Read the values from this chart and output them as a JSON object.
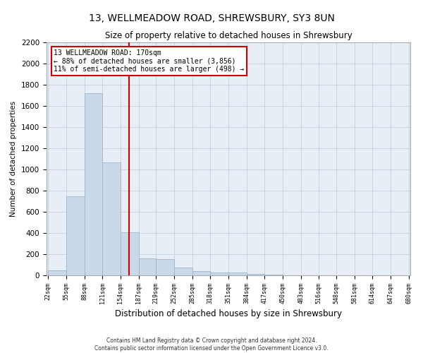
{
  "title": "13, WELLMEADOW ROAD, SHREWSBURY, SY3 8UN",
  "subtitle": "Size of property relative to detached houses in Shrewsbury",
  "xlabel": "Distribution of detached houses by size in Shrewsbury",
  "ylabel": "Number of detached properties",
  "footnote1": "Contains HM Land Registry data © Crown copyright and database right 2024.",
  "footnote2": "Contains public sector information licensed under the Open Government Licence v3.0.",
  "annotation_line1": "13 WELLMEADOW ROAD: 170sqm",
  "annotation_line2": "← 88% of detached houses are smaller (3,856)",
  "annotation_line3": "11% of semi-detached houses are larger (498) →",
  "bar_color": "#c9d9ea",
  "bar_edgecolor": "#9ab5cc",
  "vline_color": "#cc0000",
  "vline_x": 170,
  "annotation_box_edgecolor": "#cc0000",
  "bin_edges": [
    22,
    55,
    88,
    121,
    154,
    187,
    219,
    252,
    285,
    318,
    351,
    384,
    417,
    450,
    483,
    516,
    548,
    581,
    614,
    647,
    680
  ],
  "bar_heights": [
    50,
    750,
    1720,
    1070,
    410,
    160,
    155,
    75,
    40,
    30,
    25,
    15,
    5,
    3,
    2,
    2,
    1,
    1,
    1,
    1
  ],
  "ylim": [
    0,
    2200
  ],
  "yticks": [
    0,
    200,
    400,
    600,
    800,
    1000,
    1200,
    1400,
    1600,
    1800,
    2000,
    2200
  ],
  "grid_color": "#c8d4e4",
  "bg_color": "#e8eef6",
  "title_fontsize": 10,
  "subtitle_fontsize": 8.5,
  "xlabel_fontsize": 8.5,
  "ylabel_fontsize": 7.5,
  "ytick_fontsize": 7.5,
  "xtick_fontsize": 6,
  "annot_fontsize": 7,
  "footnote_fontsize": 5.5
}
